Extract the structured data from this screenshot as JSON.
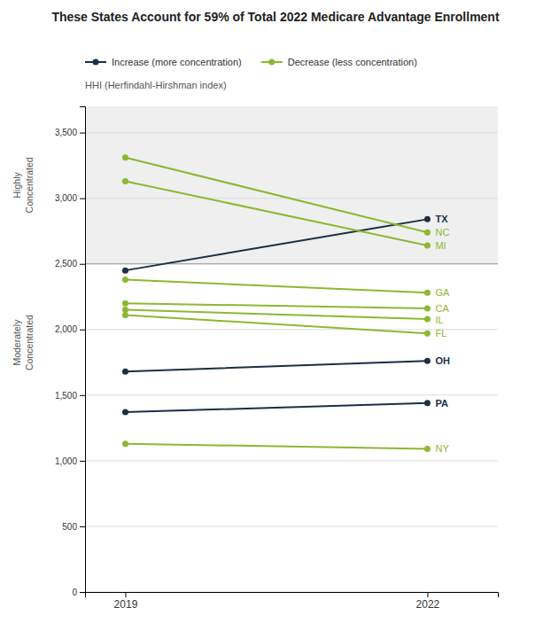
{
  "chart_data": {
    "type": "line",
    "title": "These States Account for 59% of Total 2022 Medicare Advantage Enrollment",
    "ylabel": "HHI (Herfindahl-Hirshman index)",
    "x": [
      2019,
      2022
    ],
    "xlim": [
      2018.6,
      2022.7
    ],
    "xticks": [
      2019,
      2022
    ],
    "ylim": [
      0,
      3700
    ],
    "yticks": [
      0,
      500,
      {
        "value": 1000,
        "label": "1,000"
      },
      {
        "value": 1500,
        "label": "1,500"
      },
      {
        "value": 2000,
        "label": "2,000"
      },
      {
        "value": 2500,
        "label": "2,500"
      },
      {
        "value": 3000,
        "label": "3,000"
      },
      {
        "value": 3500,
        "label": "3,500"
      }
    ],
    "grid": true,
    "marker": "circle",
    "threshold": 2500,
    "annotations": [
      "Highly\nConcentrated",
      "Moderately\nConcentrated"
    ],
    "legend_items": [
      {
        "name": "Increase (more concentration)",
        "color": "#1b2f45"
      },
      {
        "name": "Decrease (less concentration)",
        "color": "#8db832"
      }
    ],
    "series": [
      {
        "name": "TX",
        "values": [
          2450,
          2840
        ],
        "color": "#1b2f45"
      },
      {
        "name": "NC",
        "values": [
          3310,
          2740
        ],
        "color": "#8db832"
      },
      {
        "name": "MI",
        "values": [
          3130,
          2640
        ],
        "color": "#8db832"
      },
      {
        "name": "GA",
        "values": [
          2380,
          2280
        ],
        "color": "#8db832"
      },
      {
        "name": "CA",
        "values": [
          2200,
          2160
        ],
        "color": "#8db832"
      },
      {
        "name": "IL",
        "values": [
          2150,
          2080
        ],
        "color": "#8db832"
      },
      {
        "name": "FL",
        "values": [
          2110,
          1970
        ],
        "color": "#8db832"
      },
      {
        "name": "OH",
        "values": [
          1680,
          1760
        ],
        "color": "#1b2f45"
      },
      {
        "name": "PA",
        "values": [
          1370,
          1440
        ],
        "color": "#1b2f45"
      },
      {
        "name": "NY",
        "values": [
          1130,
          1090
        ],
        "color": "#8db832"
      }
    ]
  }
}
